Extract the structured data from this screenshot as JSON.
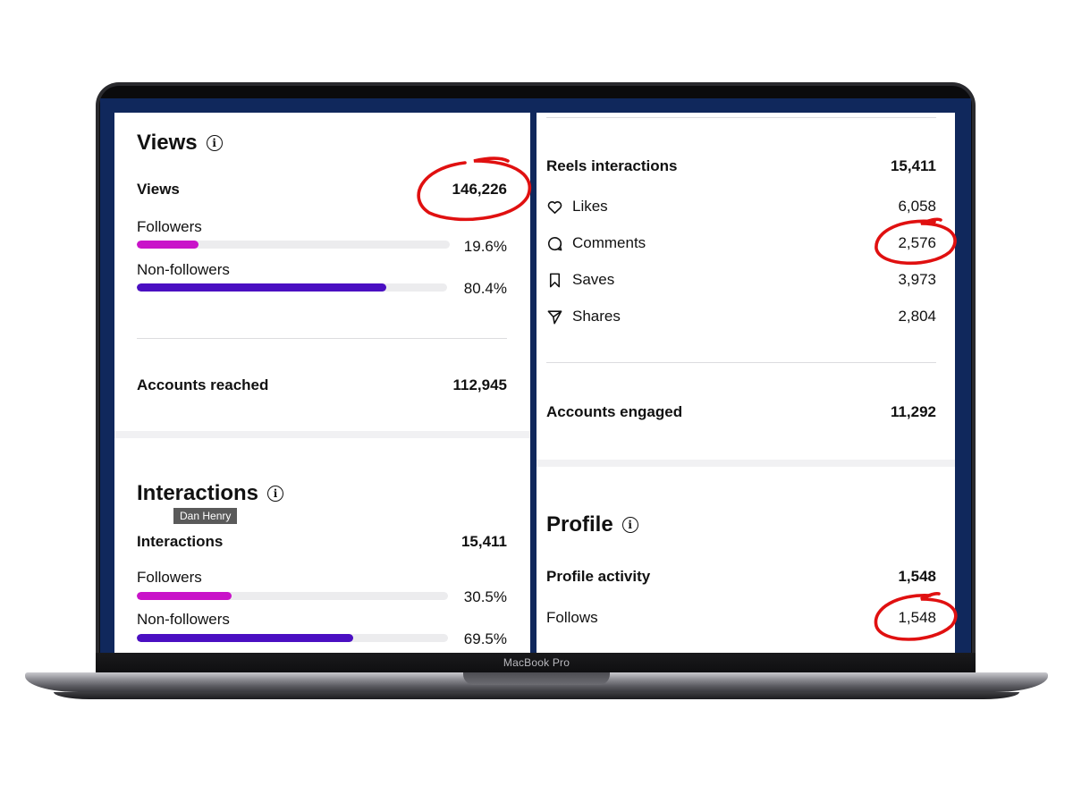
{
  "device": {
    "brand": "MacBook Pro"
  },
  "left": {
    "views_section": {
      "title": "Views",
      "total_label": "Views",
      "total_value": "146,226",
      "followers_label": "Followers",
      "followers_pct": "19.6%",
      "followers_fraction": 0.196,
      "nonfollowers_label": "Non-followers",
      "nonfollowers_pct": "80.4%",
      "nonfollowers_fraction": 0.804,
      "reached_label": "Accounts reached",
      "reached_value": "112,945"
    },
    "interactions_section": {
      "title": "Interactions",
      "tooltip": "Dan Henry",
      "total_label": "Interactions",
      "total_value": "15,411",
      "followers_label": "Followers",
      "followers_pct": "30.5%",
      "followers_fraction": 0.305,
      "nonfollowers_label": "Non-followers",
      "nonfollowers_pct": "69.5%",
      "nonfollowers_fraction": 0.695
    }
  },
  "right": {
    "reels": {
      "label": "Reels interactions",
      "value": "15,411",
      "items": [
        {
          "icon": "heart-icon",
          "label": "Likes",
          "value": "6,058"
        },
        {
          "icon": "comment-icon",
          "label": "Comments",
          "value": "2,576"
        },
        {
          "icon": "bookmark-icon",
          "label": "Saves",
          "value": "3,973"
        },
        {
          "icon": "send-icon",
          "label": "Shares",
          "value": "2,804"
        }
      ]
    },
    "engaged_label": "Accounts engaged",
    "engaged_value": "11,292",
    "profile_section": {
      "title": "Profile",
      "activity_label": "Profile activity",
      "activity_value": "1,548",
      "follows_label": "Follows",
      "follows_value": "1,548"
    }
  },
  "colors": {
    "followers_bar": "#c913c9",
    "nonfollowers_bar": "#4a0fc2",
    "screen_bg": "#10285c",
    "annotation": "#e01010"
  }
}
